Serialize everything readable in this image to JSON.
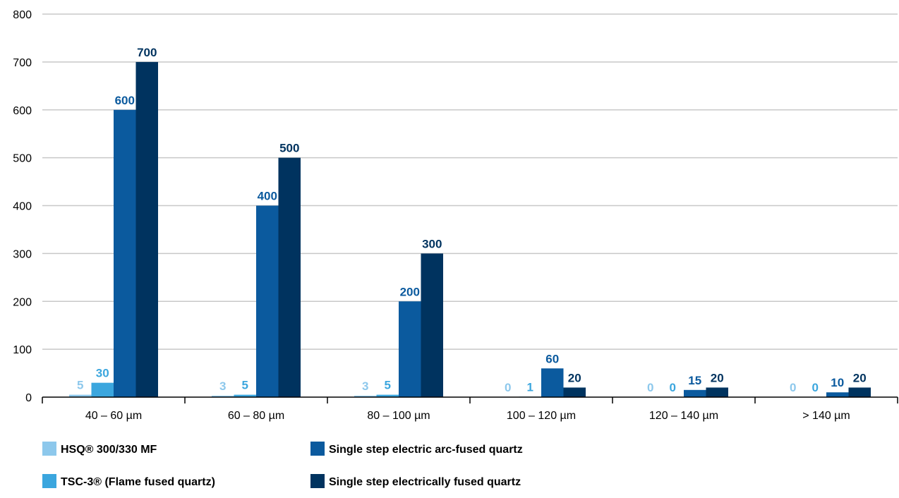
{
  "chart_data": {
    "type": "bar",
    "categories": [
      "40 – 60 µm",
      "60 – 80 µm",
      "80 – 100 µm",
      "100 – 120 µm",
      "120 – 140 µm",
      "> 140 µm"
    ],
    "series": [
      {
        "name": "HSQ® 300/330 MF",
        "values": [
          5,
          3,
          3,
          0,
          0,
          0
        ],
        "color": "#8DC8EC"
      },
      {
        "name": "TSC-3® (Flame fused quartz)",
        "values": [
          30,
          5,
          5,
          1,
          0,
          0
        ],
        "color": "#3BA6DE"
      },
      {
        "name": "Single step electric arc-fused quartz",
        "values": [
          600,
          400,
          200,
          60,
          15,
          10
        ],
        "color": "#0B5A9E"
      },
      {
        "name": "Single step electrically fused quartz",
        "values": [
          700,
          500,
          300,
          20,
          20,
          20
        ],
        "color": "#00335F"
      }
    ],
    "yticks": [
      0,
      100,
      200,
      300,
      400,
      500,
      600,
      700,
      800
    ],
    "ylim": [
      0,
      800
    ],
    "grid": true,
    "legend_position": "bottom-left",
    "data_labels_shown": true
  }
}
